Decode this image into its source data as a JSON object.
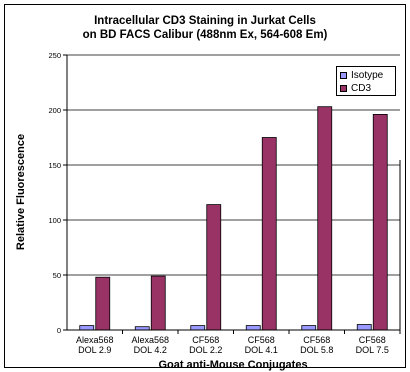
{
  "chart_data": {
    "type": "bar",
    "title": "Intracellular CD3 Staining in Jurkat Cells",
    "subtitle": "on BD FACS Calibur (488nm Ex, 564-608 Em)",
    "xlabel": "Goat anti-Mouse Conjugates",
    "ylabel": "Relative Fluorescence",
    "ylim": [
      0,
      250
    ],
    "yticks": [
      0,
      50,
      100,
      150,
      200,
      250
    ],
    "categories": [
      [
        "Alexa568",
        "DOL 2.9"
      ],
      [
        "Alexa568",
        "DOL 4.2"
      ],
      [
        "CF568",
        "DOL 2.2"
      ],
      [
        "CF568",
        "DOL 4.1"
      ],
      [
        "CF568",
        "DOL 5.8"
      ],
      [
        "CF568",
        "DOL 7.5"
      ]
    ],
    "series": [
      {
        "name": "Isotype",
        "color": "#9999ff",
        "values": [
          4,
          3,
          4,
          4,
          4,
          5
        ]
      },
      {
        "name": "CD3",
        "color": "#993366",
        "values": [
          48,
          49,
          114,
          175,
          203,
          196
        ]
      }
    ],
    "grid": true,
    "legend_position": "top-right"
  }
}
